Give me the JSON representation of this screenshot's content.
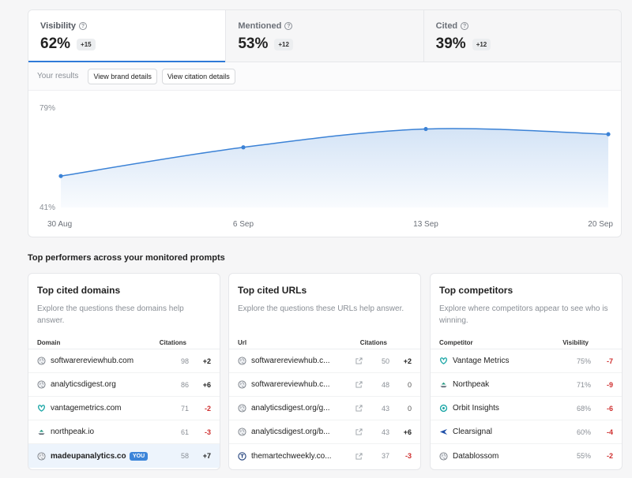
{
  "metrics": [
    {
      "label": "Visibility",
      "value": "62%",
      "delta": "+15",
      "active": true
    },
    {
      "label": "Mentioned",
      "value": "53%",
      "delta": "+12",
      "active": false
    },
    {
      "label": "Cited",
      "value": "39%",
      "delta": "+12",
      "active": false
    }
  ],
  "results": {
    "label": "Your results",
    "brand_button": "View brand details",
    "citation_button": "View citation details"
  },
  "chart_data": {
    "type": "area",
    "title": "",
    "xlabel": "",
    "ylabel": "",
    "x": [
      "30 Aug",
      "6 Sep",
      "13 Sep",
      "20 Sep"
    ],
    "series": [
      {
        "values": [
          53,
          64,
          71,
          69
        ]
      }
    ],
    "ylim": [
      41,
      79
    ],
    "y_tick_labels": [
      "79%",
      "41%"
    ],
    "grid": false,
    "color": "#3b82d6"
  },
  "section_title": "Top performers across your monitored prompts",
  "domains": {
    "title": "Top cited domains",
    "desc": "Explore the questions these domains help answer.",
    "col1": "Domain",
    "col2": "Citations",
    "rows": [
      {
        "name": "softwarereviewhub.com",
        "value": "98",
        "delta": "+2",
        "icon": "globe-icon"
      },
      {
        "name": "analyticsdigest.org",
        "value": "86",
        "delta": "+6",
        "icon": "globe-icon"
      },
      {
        "name": "vantagemetrics.com",
        "value": "71",
        "delta": "-2",
        "icon": "vantage-logo-icon"
      },
      {
        "name": "northpeak.io",
        "value": "61",
        "delta": "-3",
        "icon": "northpeak-logo-icon"
      },
      {
        "name": "madeupanalytics.com",
        "value": "58",
        "delta": "+7",
        "icon": "globe-icon",
        "badge": "YOU"
      }
    ]
  },
  "urls": {
    "title": "Top cited URLs",
    "desc": "Explore the questions these URLs help answer.",
    "col1": "Url",
    "col2": "Citations",
    "rows": [
      {
        "name": "softwarereviewhub.c...",
        "value": "50",
        "delta": "+2",
        "icon": "globe-icon"
      },
      {
        "name": "softwarereviewhub.c...",
        "value": "48",
        "delta": "0",
        "icon": "globe-icon"
      },
      {
        "name": "analyticsdigest.org/g...",
        "value": "43",
        "delta": "0",
        "icon": "globe-icon"
      },
      {
        "name": "analyticsdigest.org/b...",
        "value": "43",
        "delta": "+6",
        "icon": "globe-icon"
      },
      {
        "name": "themartechweekly.co...",
        "value": "37",
        "delta": "-3",
        "icon": "martech-logo-icon"
      }
    ]
  },
  "competitors": {
    "title": "Top competitors",
    "desc": "Explore where competitors appear to see who is winning.",
    "col1": "Competitor",
    "col2": "Visibility",
    "rows": [
      {
        "name": "Vantage Metrics",
        "value": "75%",
        "delta": "-7",
        "icon": "vantage-logo-icon"
      },
      {
        "name": "Northpeak",
        "value": "71%",
        "delta": "-9",
        "icon": "northpeak-logo-icon"
      },
      {
        "name": "Orbit Insights",
        "value": "68%",
        "delta": "-6",
        "icon": "orbit-logo-icon"
      },
      {
        "name": "Clearsignal",
        "value": "60%",
        "delta": "-4",
        "icon": "clearsignal-logo-icon"
      },
      {
        "name": "Datablossom",
        "value": "55%",
        "delta": "-2",
        "icon": "globe-icon"
      }
    ]
  }
}
